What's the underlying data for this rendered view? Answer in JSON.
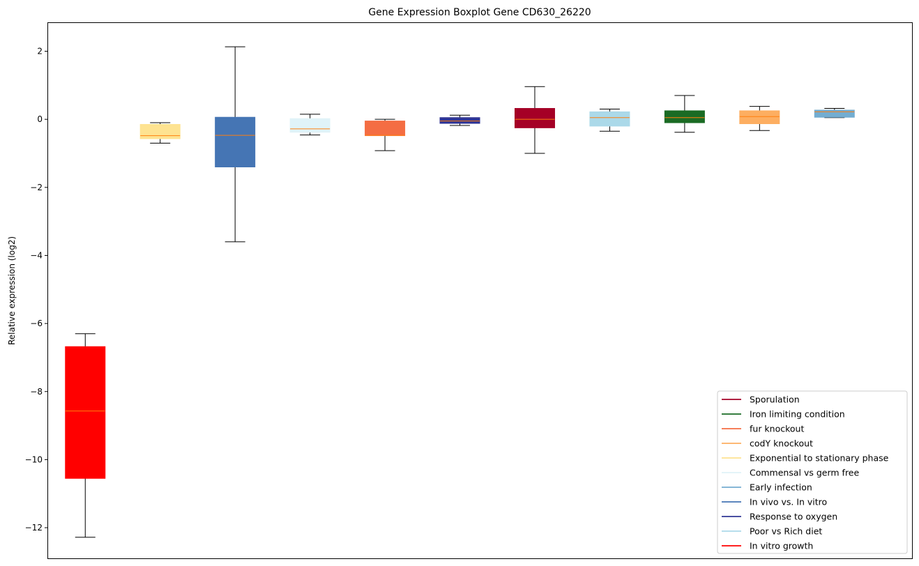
{
  "chart_data": {
    "type": "boxplot",
    "title": "Gene Expression Boxplot Gene CD630_26220",
    "xlabel": "",
    "ylabel": "Relative expression (log2)",
    "ylim": [
      -12.9,
      2.85
    ],
    "yticks": [
      2,
      0,
      -2,
      -4,
      -6,
      -8,
      -10,
      -12
    ],
    "ytick_labels": [
      "2",
      "0",
      "−2",
      "−4",
      "−6",
      "−8",
      "−10",
      "−12"
    ],
    "grid": false,
    "legend_position": "lower-right",
    "median_color": "#ff7f0e",
    "boxes": [
      {
        "name": "In vitro growth",
        "color": "#ff0000",
        "whislo": -12.28,
        "q1": -10.55,
        "med": -8.57,
        "q3": -6.68,
        "whishi": -6.3
      },
      {
        "name": "Exponential to stationary phase",
        "color": "#fee391",
        "whislo": -0.7,
        "q1": -0.57,
        "med": -0.48,
        "q3": -0.15,
        "whishi": -0.1
      },
      {
        "name": "In vivo vs. In vitro",
        "color": "#4575b4",
        "whislo": -3.6,
        "q1": -1.4,
        "med": -0.47,
        "q3": 0.06,
        "whishi": 2.13
      },
      {
        "name": "Commensal vs germ free",
        "color": "#e0f3f8",
        "whislo": -0.46,
        "q1": -0.38,
        "med": -0.28,
        "q3": 0.02,
        "whishi": 0.15
      },
      {
        "name": "fur knockout",
        "color": "#f46d43",
        "whislo": -0.92,
        "q1": -0.48,
        "med": -0.47,
        "q3": -0.05,
        "whishi": 0.0
      },
      {
        "name": "Response to oxygen",
        "color": "#313695",
        "whislo": -0.18,
        "q1": -0.12,
        "med": -0.05,
        "q3": 0.05,
        "whishi": 0.12
      },
      {
        "name": "Sporulation",
        "color": "#a50026",
        "whislo": -1.0,
        "q1": -0.25,
        "med": 0.0,
        "q3": 0.32,
        "whishi": 0.96
      },
      {
        "name": "Poor vs Rich diet",
        "color": "#abd9e9",
        "whislo": -0.35,
        "q1": -0.2,
        "med": 0.05,
        "q3": 0.22,
        "whishi": 0.3
      },
      {
        "name": "Iron limiting condition",
        "color": "#1a6b24",
        "whislo": -0.38,
        "q1": -0.1,
        "med": 0.05,
        "q3": 0.25,
        "whishi": 0.7
      },
      {
        "name": "codY knockout",
        "color": "#fdae61",
        "whislo": -0.33,
        "q1": -0.13,
        "med": 0.08,
        "q3": 0.25,
        "whishi": 0.38
      },
      {
        "name": "Early infection",
        "color": "#74add1",
        "whislo": 0.05,
        "q1": 0.06,
        "med": 0.22,
        "q3": 0.27,
        "whishi": 0.32
      }
    ],
    "legend": [
      {
        "label": "Sporulation",
        "color": "#a50026"
      },
      {
        "label": "Iron limiting condition",
        "color": "#1a6b24"
      },
      {
        "label": "fur knockout",
        "color": "#f46d43"
      },
      {
        "label": "codY knockout",
        "color": "#fdae61"
      },
      {
        "label": "Exponential to stationary phase",
        "color": "#fee391"
      },
      {
        "label": "Commensal vs germ free",
        "color": "#e0f3f8"
      },
      {
        "label": "Early infection",
        "color": "#74add1"
      },
      {
        "label": "In vivo vs. In vitro",
        "color": "#4575b4"
      },
      {
        "label": "Response to oxygen",
        "color": "#313695"
      },
      {
        "label": "Poor vs Rich diet",
        "color": "#abd9e9"
      },
      {
        "label": "In vitro growth",
        "color": "#ff0000"
      }
    ]
  }
}
